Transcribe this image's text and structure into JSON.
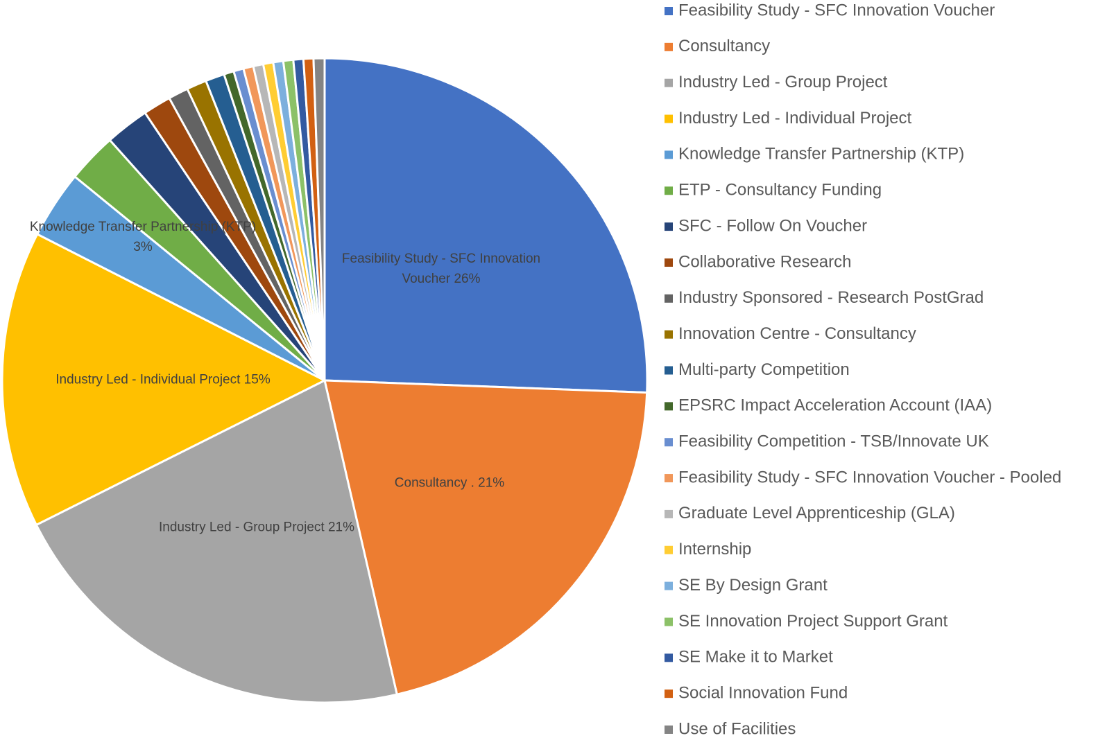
{
  "chart_data": {
    "type": "pie",
    "categories": [
      "Feasibility Study - SFC Innovation Voucher",
      "Consultancy",
      "Industry Led - Group Project",
      "Industry Led - Individual Project",
      "Knowledge Transfer Partnership (KTP)",
      "ETP - Consultancy Funding",
      "SFC - Follow On Voucher",
      "Collaborative Research",
      "Industry Sponsored - Research PostGrad",
      "Innovation Centre - Consultancy",
      "Multi-party Competition",
      "EPSRC Impact Acceleration Account (IAA)",
      "Feasibility Competition - TSB/Innovate UK",
      "Feasibility Study - SFC Innovation Voucher - Pooled",
      "Graduate Level Apprenticeship (GLA)",
      "Internship",
      "SE By Design Grant",
      "SE Innovation Project Support Grant",
      "SE Make it to Market",
      "Social Innovation Fund",
      "Use of Facilities"
    ],
    "values": [
      25.6,
      20.8,
      21.2,
      14.9,
      3.4,
      2.5,
      2.2,
      1.4,
      1.0,
      1.0,
      0.95,
      0.5,
      0.5,
      0.5,
      0.5,
      0.5,
      0.5,
      0.5,
      0.5,
      0.5,
      0.55
    ],
    "value_labels": [
      "Feasibility Study - SFC Innovation Voucher  26%",
      "Consultancy . 21%",
      "Industry Led - Group Project 21%",
      "Industry Led - Individual Project 15%",
      "Knowledge Transfer Partnership (KTP) 3%",
      null,
      null,
      null,
      null,
      null,
      null,
      null,
      null,
      null,
      null,
      null,
      null,
      null,
      null,
      null,
      null
    ],
    "colors": [
      "#4472c4",
      "#ed7d31",
      "#a5a5a5",
      "#ffc000",
      "#5b9bd5",
      "#70ad47",
      "#264478",
      "#9e480e",
      "#636363",
      "#997300",
      "#255e91",
      "#43682b",
      "#698ed0",
      "#f1975a",
      "#b7b7b7",
      "#ffcd33",
      "#7cafdd",
      "#8cc168",
      "#335aa1",
      "#d26012",
      "#848484"
    ],
    "legend": "right"
  }
}
